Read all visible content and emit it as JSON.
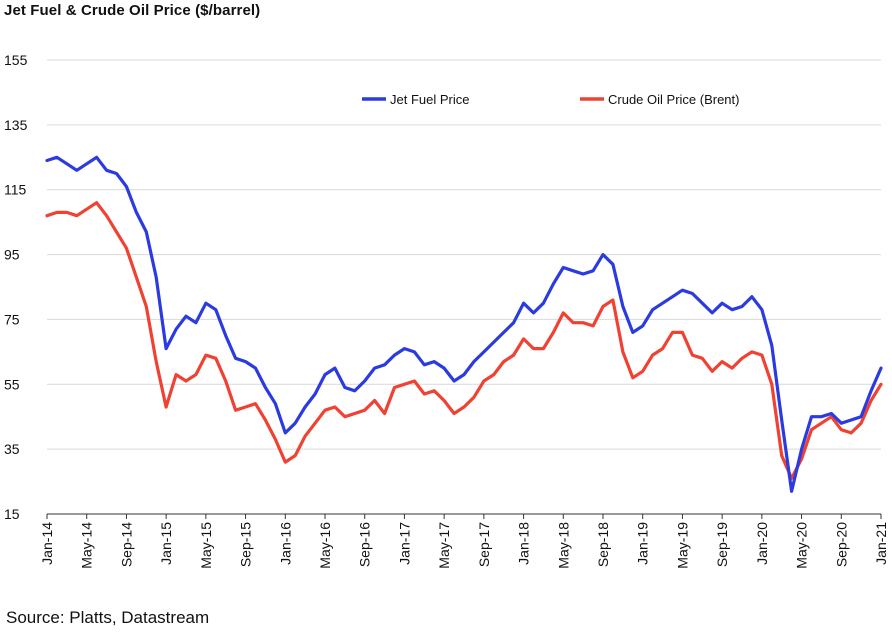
{
  "title": "Jet Fuel & Crude Oil Price ($/barrel)",
  "source": "Source: Platts, Datastream",
  "colors": {
    "jet_fuel": "#2b3be0",
    "crude_oil": "#ef4233",
    "grid": "#d9d9d9",
    "axis": "#333333"
  },
  "chart_data": {
    "type": "line",
    "title": "Jet Fuel & Crude Oil Price ($/barrel)",
    "xlabel": "",
    "ylabel": "",
    "ylim": [
      15,
      155
    ],
    "yticks": [
      15,
      35,
      55,
      75,
      95,
      115,
      135,
      155
    ],
    "xlim": [
      "2014-01",
      "2021-01"
    ],
    "xtick_labels": [
      "Jan-14",
      "May-14",
      "Sep-14",
      "Jan-15",
      "May-15",
      "Sep-15",
      "Jan-16",
      "May-16",
      "Sep-16",
      "Jan-17",
      "May-17",
      "Sep-17",
      "Jan-18",
      "May-18",
      "Sep-18",
      "Jan-19",
      "May-19",
      "Sep-19",
      "Jan-20",
      "May-20",
      "Sep-20",
      "Jan-21"
    ],
    "grid": "horizontal",
    "legend_position": "top",
    "x": [
      "2014-01",
      "2014-02",
      "2014-03",
      "2014-04",
      "2014-05",
      "2014-06",
      "2014-07",
      "2014-08",
      "2014-09",
      "2014-10",
      "2014-11",
      "2014-12",
      "2015-01",
      "2015-02",
      "2015-03",
      "2015-04",
      "2015-05",
      "2015-06",
      "2015-07",
      "2015-08",
      "2015-09",
      "2015-10",
      "2015-11",
      "2015-12",
      "2016-01",
      "2016-02",
      "2016-03",
      "2016-04",
      "2016-05",
      "2016-06",
      "2016-07",
      "2016-08",
      "2016-09",
      "2016-10",
      "2016-11",
      "2016-12",
      "2017-01",
      "2017-02",
      "2017-03",
      "2017-04",
      "2017-05",
      "2017-06",
      "2017-07",
      "2017-08",
      "2017-09",
      "2017-10",
      "2017-11",
      "2017-12",
      "2018-01",
      "2018-02",
      "2018-03",
      "2018-04",
      "2018-05",
      "2018-06",
      "2018-07",
      "2018-08",
      "2018-09",
      "2018-10",
      "2018-11",
      "2018-12",
      "2019-01",
      "2019-02",
      "2019-03",
      "2019-04",
      "2019-05",
      "2019-06",
      "2019-07",
      "2019-08",
      "2019-09",
      "2019-10",
      "2019-11",
      "2019-12",
      "2020-01",
      "2020-02",
      "2020-03",
      "2020-04",
      "2020-05",
      "2020-06",
      "2020-07",
      "2020-08",
      "2020-09",
      "2020-10",
      "2020-11",
      "2020-12",
      "2021-01"
    ],
    "series": [
      {
        "name": "Jet Fuel Price",
        "values": [
          124,
          125,
          123,
          121,
          123,
          125,
          121,
          120,
          116,
          108,
          102,
          88,
          66,
          72,
          76,
          74,
          80,
          78,
          70,
          63,
          62,
          60,
          54,
          49,
          40,
          43,
          48,
          52,
          58,
          60,
          54,
          53,
          56,
          60,
          61,
          64,
          66,
          65,
          61,
          62,
          60,
          56,
          58,
          62,
          65,
          68,
          71,
          74,
          80,
          77,
          80,
          86,
          91,
          90,
          89,
          90,
          95,
          92,
          79,
          71,
          73,
          78,
          80,
          82,
          84,
          83,
          80,
          77,
          80,
          78,
          79,
          82,
          78,
          67,
          44,
          22,
          35,
          45,
          45,
          46,
          43,
          44,
          45,
          53,
          60
        ]
      },
      {
        "name": "Crude Oil Price (Brent)",
        "values": [
          107,
          108,
          108,
          107,
          109,
          111,
          107,
          102,
          97,
          88,
          79,
          62,
          48,
          58,
          56,
          58,
          64,
          63,
          56,
          47,
          48,
          49,
          44,
          38,
          31,
          33,
          39,
          43,
          47,
          48,
          45,
          46,
          47,
          50,
          46,
          54,
          55,
          56,
          52,
          53,
          50,
          46,
          48,
          51,
          56,
          58,
          62,
          64,
          69,
          66,
          66,
          71,
          77,
          74,
          74,
          73,
          79,
          81,
          65,
          57,
          59,
          64,
          66,
          71,
          71,
          64,
          63,
          59,
          62,
          60,
          63,
          65,
          64,
          55,
          33,
          26,
          32,
          41,
          43,
          45,
          41,
          40,
          43,
          50,
          55
        ]
      }
    ]
  }
}
